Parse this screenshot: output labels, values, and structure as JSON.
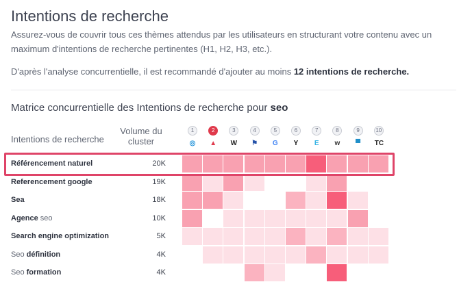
{
  "page": {
    "title": "Intentions de recherche",
    "description": "Assurez-vous de couvrir tous ces thèmes attendus par les utilisateurs en structurant votre contenu avec un maximum d'intentions de recherche pertinentes (H1, H2, H3, etc.).",
    "recommendation_prefix": "D'après l'analyse concurrentielle, il est recommandé d'ajouter au moins ",
    "recommendation_bold": "12 intentions de recherche."
  },
  "matrix": {
    "title_prefix": "Matrice concurrentielle des Intentions de recherche pour ",
    "keyword": "seo",
    "col_label": "Intentions de recherche",
    "col_volume_line1": "Volume du",
    "col_volume_line2": "cluster",
    "competitors": [
      {
        "rank": "1",
        "icon": "ring-logo-icon",
        "glyph": "◎",
        "color": "#1a8fd8",
        "active": false
      },
      {
        "rank": "2",
        "icon": "red-a-logo-icon",
        "glyph": "▲",
        "color": "#e03a4c",
        "active": true
      },
      {
        "rank": "3",
        "icon": "w-logo-icon",
        "glyph": "W",
        "color": "#222222",
        "active": false
      },
      {
        "rank": "4",
        "icon": "flag-logo-icon",
        "glyph": "⚑",
        "color": "#2451a8",
        "active": false
      },
      {
        "rank": "5",
        "icon": "google-logo-icon",
        "glyph": "G",
        "color": "#4285f4",
        "active": false
      },
      {
        "rank": "6",
        "icon": "y-logo-icon",
        "glyph": "Y",
        "color": "#111111",
        "active": false
      },
      {
        "rank": "7",
        "icon": "e-logo-icon",
        "glyph": "E",
        "color": "#34b3e4",
        "active": false
      },
      {
        "rank": "8",
        "icon": "w-small-logo-icon",
        "glyph": "w",
        "color": "#333333",
        "active": false
      },
      {
        "rank": "9",
        "icon": "blue-square-logo-icon",
        "glyph": "▀",
        "color": "#1f8fc9",
        "active": false
      },
      {
        "rank": "10",
        "icon": "tc-logo-icon",
        "glyph": "TC",
        "color": "#222222",
        "active": false
      }
    ],
    "colors": {
      "0": "#ffffff",
      "1": "#fde0e6",
      "2": "#fbb3c0",
      "3": "#f9a1b1",
      "4": "#f75e7a"
    },
    "rows": [
      {
        "label_bold": "Référencement naturel",
        "label_normal": "",
        "volume": "20K",
        "levels": [
          3,
          3,
          3,
          3,
          3,
          3,
          4,
          3,
          3,
          3
        ]
      },
      {
        "label_bold": "Referencement google",
        "label_normal": "",
        "volume": "19K",
        "levels": [
          3,
          1,
          3,
          1,
          0,
          0,
          1,
          3,
          0,
          0
        ]
      },
      {
        "label_bold": "Sea",
        "label_normal": "",
        "volume": "18K",
        "levels": [
          3,
          3,
          1,
          0,
          0,
          2,
          1,
          4,
          1,
          0
        ]
      },
      {
        "label_bold": "Agence",
        "label_normal": " seo",
        "volume": "10K",
        "levels": [
          3,
          0,
          1,
          1,
          1,
          1,
          1,
          1,
          3,
          0
        ]
      },
      {
        "label_bold": "Search engine optimization",
        "label_normal": "",
        "volume": "5K",
        "levels": [
          1,
          1,
          1,
          1,
          1,
          2,
          1,
          2,
          1,
          1
        ]
      },
      {
        "label_bold": "définition",
        "label_normal": "Seo ",
        "volume": "4K",
        "normal_first": true,
        "levels": [
          0,
          1,
          1,
          1,
          1,
          1,
          2,
          1,
          1,
          1
        ]
      },
      {
        "label_bold": "formation",
        "label_normal": "Seo ",
        "volume": "4K",
        "normal_first": true,
        "levels": [
          0,
          0,
          0,
          2,
          1,
          0,
          0,
          4,
          0,
          0
        ]
      }
    ]
  }
}
